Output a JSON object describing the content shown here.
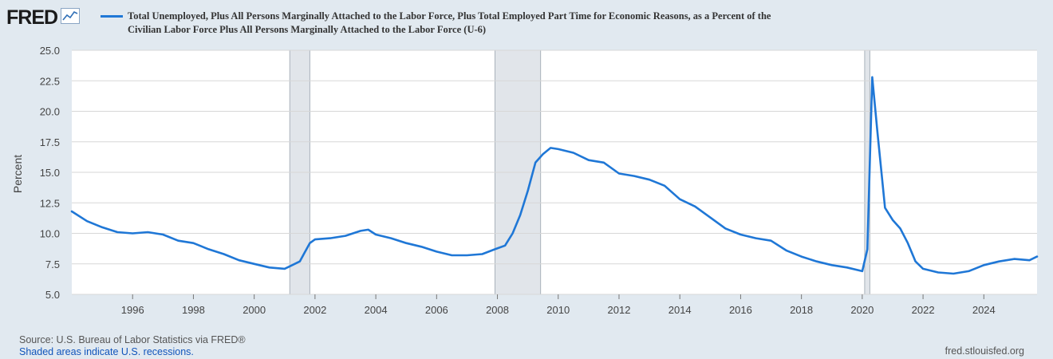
{
  "brand": {
    "name": "FRED",
    "icon": "chart-line-icon"
  },
  "title_lines": [
    "Total Unemployed, Plus All Persons Marginally Attached to the Labor Force, Plus Total Employed Part Time for Economic Reasons, as a Percent of the",
    "Civilian Labor Force Plus All Persons Marginally Attached to the Labor Force (U-6)"
  ],
  "footer": {
    "source": "Source: U.S. Bureau of Labor Statistics via FRED®",
    "note": "Shaded areas indicate U.S. recessions.",
    "site": "fred.stlouisfed.org"
  },
  "colors": {
    "line": "#1f77d6",
    "background": "#e1e9f0",
    "plot": "#ffffff",
    "recession": "#e1e5ea"
  },
  "chart_data": {
    "type": "line",
    "title": "Total Unemployed, Plus All Persons Marginally Attached to the Labor Force, Plus Total Employed Part Time for Economic Reasons, as a Percent of the Civilian Labor Force Plus All Persons Marginally Attached to the Labor Force (U-6)",
    "ylabel": "Percent",
    "xlabel": "",
    "ylim": [
      5.0,
      25.0
    ],
    "xlim": [
      1994.0,
      2025.75
    ],
    "yticks": [
      "5.0",
      "7.5",
      "10.0",
      "12.5",
      "15.0",
      "17.5",
      "20.0",
      "22.5",
      "25.0"
    ],
    "xticks": [
      "1996",
      "1998",
      "2000",
      "2002",
      "2004",
      "2006",
      "2008",
      "2010",
      "2012",
      "2014",
      "2016",
      "2018",
      "2020",
      "2022",
      "2024"
    ],
    "grid": true,
    "recessions": [
      [
        2001.17,
        2001.83
      ],
      [
        2007.92,
        2009.42
      ],
      [
        2020.08,
        2020.25
      ]
    ],
    "series": [
      {
        "name": "U-6",
        "points": [
          [
            1994.0,
            11.8
          ],
          [
            1994.5,
            11.0
          ],
          [
            1995.0,
            10.5
          ],
          [
            1995.5,
            10.1
          ],
          [
            1996.0,
            10.0
          ],
          [
            1996.5,
            10.1
          ],
          [
            1997.0,
            9.9
          ],
          [
            1997.5,
            9.4
          ],
          [
            1998.0,
            9.2
          ],
          [
            1998.5,
            8.7
          ],
          [
            1999.0,
            8.3
          ],
          [
            1999.5,
            7.8
          ],
          [
            2000.0,
            7.5
          ],
          [
            2000.5,
            7.2
          ],
          [
            2001.0,
            7.1
          ],
          [
            2001.17,
            7.3
          ],
          [
            2001.5,
            7.7
          ],
          [
            2001.83,
            9.2
          ],
          [
            2002.0,
            9.5
          ],
          [
            2002.5,
            9.6
          ],
          [
            2003.0,
            9.8
          ],
          [
            2003.5,
            10.2
          ],
          [
            2003.75,
            10.3
          ],
          [
            2004.0,
            9.9
          ],
          [
            2004.5,
            9.6
          ],
          [
            2005.0,
            9.2
          ],
          [
            2005.5,
            8.9
          ],
          [
            2006.0,
            8.5
          ],
          [
            2006.5,
            8.2
          ],
          [
            2007.0,
            8.2
          ],
          [
            2007.5,
            8.3
          ],
          [
            2007.92,
            8.7
          ],
          [
            2008.25,
            9.0
          ],
          [
            2008.5,
            10.0
          ],
          [
            2008.75,
            11.5
          ],
          [
            2009.0,
            13.5
          ],
          [
            2009.25,
            15.8
          ],
          [
            2009.5,
            16.5
          ],
          [
            2009.75,
            17.0
          ],
          [
            2010.0,
            16.9
          ],
          [
            2010.5,
            16.6
          ],
          [
            2011.0,
            16.0
          ],
          [
            2011.5,
            15.8
          ],
          [
            2012.0,
            14.9
          ],
          [
            2012.5,
            14.7
          ],
          [
            2013.0,
            14.4
          ],
          [
            2013.5,
            13.9
          ],
          [
            2014.0,
            12.8
          ],
          [
            2014.5,
            12.2
          ],
          [
            2015.0,
            11.3
          ],
          [
            2015.5,
            10.4
          ],
          [
            2016.0,
            9.9
          ],
          [
            2016.5,
            9.6
          ],
          [
            2017.0,
            9.4
          ],
          [
            2017.5,
            8.6
          ],
          [
            2018.0,
            8.1
          ],
          [
            2018.5,
            7.7
          ],
          [
            2019.0,
            7.4
          ],
          [
            2019.5,
            7.2
          ],
          [
            2020.0,
            6.9
          ],
          [
            2020.17,
            8.7
          ],
          [
            2020.33,
            22.8
          ],
          [
            2020.5,
            18.3
          ],
          [
            2020.75,
            12.1
          ],
          [
            2021.0,
            11.1
          ],
          [
            2021.25,
            10.4
          ],
          [
            2021.5,
            9.2
          ],
          [
            2021.75,
            7.7
          ],
          [
            2022.0,
            7.1
          ],
          [
            2022.5,
            6.8
          ],
          [
            2023.0,
            6.7
          ],
          [
            2023.5,
            6.9
          ],
          [
            2024.0,
            7.4
          ],
          [
            2024.5,
            7.7
          ],
          [
            2025.0,
            7.9
          ],
          [
            2025.5,
            7.8
          ],
          [
            2025.75,
            8.1
          ]
        ]
      }
    ]
  }
}
